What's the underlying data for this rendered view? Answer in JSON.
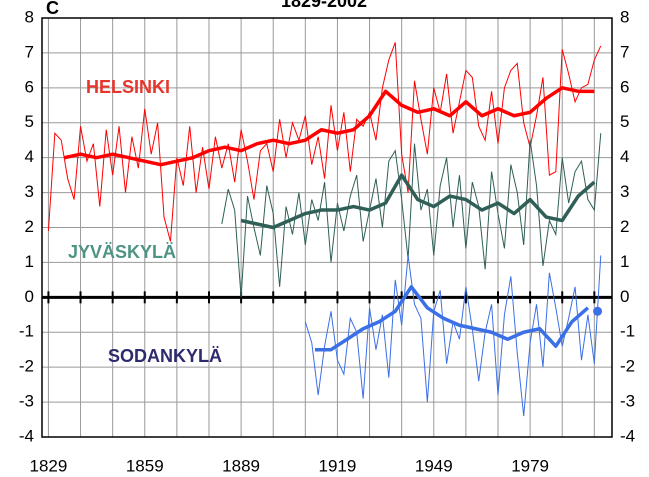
{
  "chart_data": {
    "type": "line",
    "title": "1829-2002",
    "y_unit": "C",
    "xlim": [
      1827,
      2004.5
    ],
    "xticks": [
      1829,
      1859,
      1889,
      1919,
      1949,
      1979
    ],
    "xgrid": [
      1829,
      1839,
      1849,
      1859,
      1869,
      1879,
      1889,
      1899,
      1909,
      1919,
      1929,
      1939,
      1949,
      1959,
      1969,
      1979,
      1989,
      1999
    ],
    "ylim": [
      -4,
      8
    ],
    "yticks": [
      -4,
      -3,
      -2,
      -1,
      0,
      1,
      2,
      3,
      4,
      5,
      6,
      7,
      8
    ],
    "grid": true,
    "series": [
      {
        "name": "HELSINKI",
        "color": "#ff0000",
        "label_color": "#e8352b",
        "x": [
          1829,
          1831,
          1833,
          1835,
          1837,
          1839,
          1841,
          1843,
          1845,
          1847,
          1849,
          1851,
          1853,
          1855,
          1857,
          1859,
          1861,
          1863,
          1865,
          1867,
          1869,
          1871,
          1873,
          1875,
          1877,
          1879,
          1881,
          1883,
          1885,
          1887,
          1889,
          1891,
          1893,
          1895,
          1897,
          1899,
          1901,
          1903,
          1905,
          1907,
          1909,
          1911,
          1913,
          1915,
          1917,
          1919,
          1921,
          1923,
          1925,
          1927,
          1929,
          1931,
          1933,
          1935,
          1937,
          1939,
          1941,
          1943,
          1945,
          1947,
          1949,
          1951,
          1953,
          1955,
          1957,
          1959,
          1961,
          1963,
          1965,
          1967,
          1969,
          1971,
          1973,
          1975,
          1977,
          1979,
          1981,
          1983,
          1985,
          1987,
          1989,
          1991,
          1993,
          1995,
          1997,
          1999,
          2001
        ],
        "values": [
          1.9,
          4.7,
          4.5,
          3.4,
          2.8,
          4.9,
          3.9,
          4.4,
          2.6,
          4.8,
          3.5,
          4.9,
          3.0,
          4.6,
          3.7,
          5.4,
          4.1,
          5.0,
          2.3,
          1.6,
          4.0,
          3.2,
          4.9,
          3.0,
          4.3,
          3.1,
          4.6,
          3.7,
          4.4,
          3.3,
          4.8,
          3.9,
          2.8,
          4.2,
          4.4,
          3.6,
          5.1,
          4.0,
          5.0,
          4.5,
          5.2,
          3.8,
          4.6,
          3.4,
          5.5,
          4.2,
          5.3,
          3.6,
          5.1,
          4.9,
          5.3,
          4.5,
          6.0,
          6.8,
          7.3,
          4.1,
          3.0,
          6.2,
          5.1,
          4.1,
          6.0,
          5.3,
          6.4,
          4.7,
          5.6,
          6.5,
          6.3,
          4.9,
          4.5,
          5.9,
          4.4,
          6.0,
          6.5,
          6.7,
          5.0,
          4.3,
          5.2,
          6.3,
          3.5,
          3.6,
          7.1,
          6.4,
          5.6,
          6.0,
          6.1,
          6.8,
          7.2
        ],
        "smooth_x": [
          1834,
          1839,
          1844,
          1849,
          1854,
          1859,
          1864,
          1869,
          1874,
          1879,
          1884,
          1889,
          1894,
          1899,
          1904,
          1909,
          1914,
          1919,
          1924,
          1929,
          1934,
          1939,
          1944,
          1949,
          1954,
          1959,
          1964,
          1969,
          1974,
          1979,
          1984,
          1989,
          1994,
          1999
        ],
        "smooth_values": [
          4.0,
          4.1,
          4.0,
          4.1,
          4.0,
          3.9,
          3.8,
          3.9,
          4.0,
          4.2,
          4.3,
          4.2,
          4.4,
          4.5,
          4.4,
          4.5,
          4.8,
          4.7,
          4.8,
          5.2,
          5.9,
          5.5,
          5.3,
          5.4,
          5.2,
          5.6,
          5.2,
          5.4,
          5.2,
          5.3,
          5.7,
          6.0,
          5.9,
          5.9
        ]
      },
      {
        "name": "JYVÄSKYLÄ",
        "color": "#2f5f57",
        "label_color": "#4e9484",
        "x": [
          1883,
          1885,
          1887,
          1889,
          1891,
          1893,
          1895,
          1897,
          1899,
          1901,
          1903,
          1905,
          1907,
          1909,
          1911,
          1913,
          1915,
          1917,
          1919,
          1921,
          1923,
          1925,
          1927,
          1929,
          1931,
          1933,
          1935,
          1937,
          1939,
          1941,
          1943,
          1945,
          1947,
          1949,
          1951,
          1953,
          1955,
          1957,
          1959,
          1961,
          1963,
          1965,
          1967,
          1969,
          1971,
          1973,
          1975,
          1977,
          1979,
          1981,
          1983,
          1985,
          1987,
          1989,
          1991,
          1993,
          1995,
          1997,
          1999,
          2001
        ],
        "values": [
          2.1,
          3.1,
          2.5,
          0.0,
          2.9,
          2.0,
          1.2,
          3.2,
          2.4,
          0.3,
          2.6,
          1.8,
          3.0,
          1.5,
          2.8,
          2.2,
          3.3,
          1.0,
          2.7,
          1.9,
          2.9,
          3.5,
          1.6,
          2.5,
          3.4,
          2.0,
          3.9,
          4.2,
          2.8,
          1.1,
          4.4,
          2.5,
          3.1,
          1.2,
          3.2,
          4.0,
          2.0,
          3.5,
          1.4,
          3.3,
          2.6,
          0.8,
          3.6,
          2.4,
          1.4,
          3.8,
          3.0,
          1.5,
          4.5,
          3.2,
          0.9,
          2.2,
          1.8,
          4.0,
          2.7,
          3.6,
          3.9,
          2.8,
          2.5,
          4.7
        ],
        "smooth_x": [
          1889,
          1894,
          1899,
          1904,
          1909,
          1914,
          1919,
          1924,
          1929,
          1934,
          1939,
          1944,
          1949,
          1954,
          1959,
          1964,
          1969,
          1974,
          1979,
          1984,
          1989,
          1994,
          1999
        ],
        "smooth_values": [
          2.2,
          2.1,
          2.0,
          2.2,
          2.4,
          2.5,
          2.5,
          2.6,
          2.5,
          2.7,
          3.5,
          2.8,
          2.6,
          2.9,
          2.8,
          2.5,
          2.7,
          2.4,
          2.8,
          2.3,
          2.2,
          2.9,
          3.3
        ]
      },
      {
        "name": "SODANKYLÄ",
        "color": "#3b6fe6",
        "label_color": "#2e2a6e",
        "x": [
          1909,
          1911,
          1913,
          1915,
          1917,
          1919,
          1921,
          1923,
          1925,
          1927,
          1929,
          1931,
          1933,
          1935,
          1937,
          1939,
          1941,
          1943,
          1945,
          1947,
          1949,
          1951,
          1953,
          1955,
          1957,
          1959,
          1961,
          1963,
          1965,
          1967,
          1969,
          1971,
          1973,
          1975,
          1977,
          1979,
          1981,
          1983,
          1985,
          1987,
          1989,
          1991,
          1993,
          1995,
          1997,
          1999,
          2001
        ],
        "values": [
          -0.7,
          -1.3,
          -2.8,
          -1.4,
          -0.4,
          -1.8,
          -2.2,
          -0.6,
          -1.0,
          -2.9,
          -0.3,
          -1.5,
          -0.5,
          -2.3,
          0.5,
          -0.8,
          1.2,
          -0.2,
          -0.6,
          -3.0,
          -0.4,
          0.2,
          -1.9,
          -0.7,
          -1.2,
          0.3,
          -0.9,
          -2.4,
          -1.0,
          -0.2,
          -2.8,
          -0.5,
          0.6,
          -1.6,
          -3.4,
          -1.3,
          -0.2,
          -2.0,
          0.7,
          -0.3,
          -1.4,
          -0.6,
          0.3,
          -1.8,
          -0.5,
          -1.9,
          1.2
        ],
        "smooth_x": [
          1912,
          1917,
          1922,
          1927,
          1932,
          1937,
          1942,
          1947,
          1952,
          1957,
          1962,
          1967,
          1972,
          1977,
          1982,
          1987,
          1992,
          1997
        ],
        "smooth_values": [
          -1.5,
          -1.5,
          -1.2,
          -0.9,
          -0.7,
          -0.4,
          0.3,
          -0.3,
          -0.6,
          -0.8,
          -0.9,
          -1.0,
          -1.2,
          -1.0,
          -0.9,
          -1.4,
          -0.7,
          -0.3
        ],
        "marker_x": 2000,
        "marker_value": -0.4
      }
    ]
  }
}
